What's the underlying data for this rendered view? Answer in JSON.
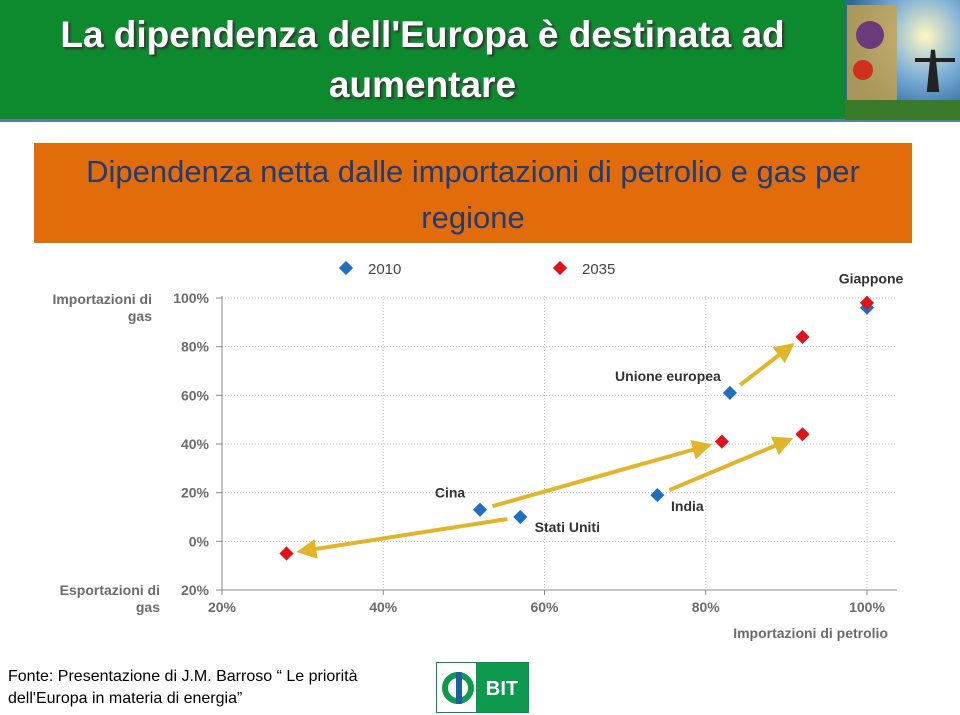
{
  "slide": {
    "title": "La dipendenza dell'Europa è destinata ad aumentare",
    "subtitle": "Dipendenza netta dalle importazioni di petrolio e gas per regione",
    "source": "Fonte: Presentazione di J.M. Barroso “ Le priorità dell'Europa in materia di energia”",
    "logo": "BIT"
  },
  "chart_data": {
    "type": "scatter",
    "x_label": "Importazioni di petrolio",
    "y_label_top": "Importazioni di gas",
    "y_label_bottom": "Esportazioni di gas",
    "point_labels": [
      "Cina",
      "Stati Uniti",
      "India",
      "Unione europea",
      "Giappone"
    ],
    "series": [
      {
        "name": "2010",
        "color": "#1f6fbf",
        "x": [
          52,
          57,
          74,
          83,
          100
        ],
        "values": [
          13,
          10,
          19,
          61,
          96
        ]
      },
      {
        "name": "2035",
        "color": "#e0121a",
        "x": [
          82,
          28,
          92,
          92,
          100
        ],
        "values": [
          41,
          -5,
          44,
          84,
          98
        ]
      }
    ],
    "arrow_color": "#e2b42a",
    "xlim": [
      20,
      100
    ],
    "xticks": [
      {
        "value": 20,
        "label": "20%"
      },
      {
        "value": 40,
        "label": "40%"
      },
      {
        "value": 60,
        "label": "60%"
      },
      {
        "value": 80,
        "label": "80%"
      },
      {
        "value": 100,
        "label": "100%"
      }
    ],
    "ylim": [
      -20,
      100
    ],
    "yticks": [
      {
        "value": -20,
        "label": "20%"
      },
      {
        "value": 0,
        "label": "0%"
      },
      {
        "value": 20,
        "label": "20%"
      },
      {
        "value": 40,
        "label": "40%"
      },
      {
        "value": 60,
        "label": "60%"
      },
      {
        "value": 80,
        "label": "80%"
      },
      {
        "value": 100,
        "label": "100%"
      }
    ],
    "grid": true
  }
}
